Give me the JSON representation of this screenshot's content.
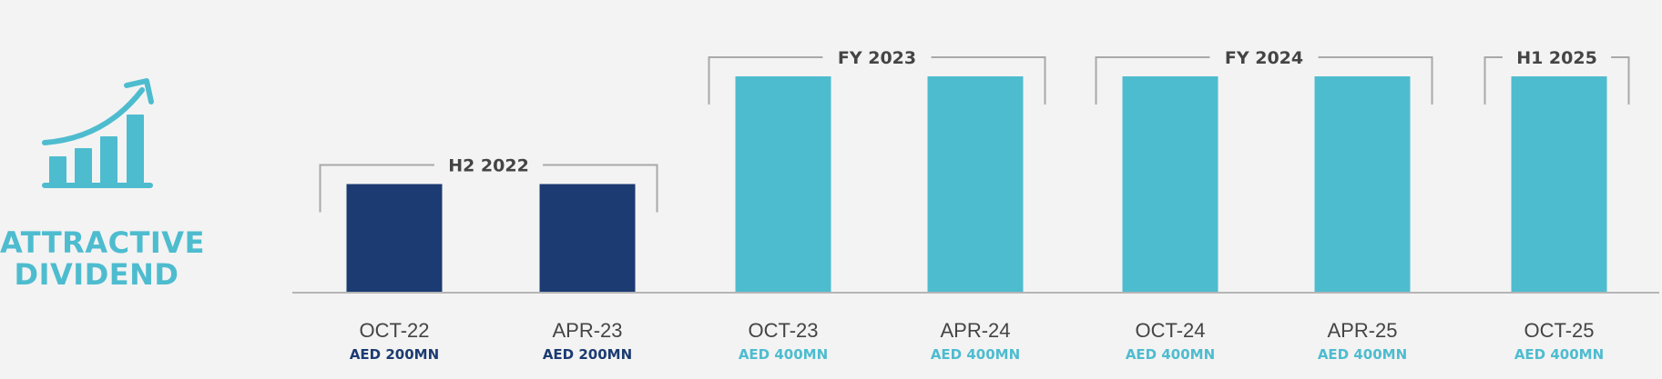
{
  "title_line1": "ATTRACTIVE",
  "title_line2": "DIVIDEND",
  "icon": "growth-chart-icon",
  "colors": {
    "navy": "#1c3b72",
    "teal": "#4ebccf",
    "bracket": "#a8a8a8",
    "axis": "#b5b5b5",
    "text": "#444444"
  },
  "chart_data": {
    "type": "bar",
    "categories": [
      "OCT-22",
      "APR-23",
      "OCT-23",
      "APR-24",
      "OCT-24",
      "APR-25",
      "OCT-25"
    ],
    "values": [
      200,
      200,
      400,
      400,
      400,
      400,
      400
    ],
    "value_labels": [
      "AED 200MN",
      "AED 200MN",
      "AED 400MN",
      "AED 400MN",
      "AED 400MN",
      "AED 400MN",
      "AED 400MN"
    ],
    "unit": "AED MN",
    "ylim": [
      0,
      400
    ],
    "groups": [
      {
        "label": "H2 2022",
        "start": 0,
        "end": 1,
        "color": "navy"
      },
      {
        "label": "FY 2023",
        "start": 2,
        "end": 3,
        "color": "teal"
      },
      {
        "label": "FY 2024",
        "start": 4,
        "end": 5,
        "color": "teal"
      },
      {
        "label": "H1 2025",
        "start": 6,
        "end": 6,
        "color": "teal"
      }
    ],
    "title": "",
    "xlabel": "",
    "ylabel": "",
    "grid": false
  }
}
